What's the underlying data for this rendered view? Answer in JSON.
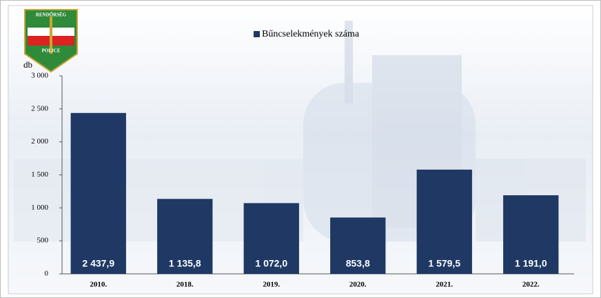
{
  "logo": {
    "top": "RENDŐRSÉG",
    "bottom": "POLICE"
  },
  "chart_data": {
    "type": "bar",
    "y_label": "db",
    "categories": [
      "2010.",
      "2018.",
      "2019.",
      "2020.",
      "2021.",
      "2022."
    ],
    "series": [
      {
        "name": "Bűncselekmények száma",
        "color": "#1f3864",
        "values": [
          2437.9,
          1135.8,
          1072.0,
          853.8,
          1579.5,
          1191.0
        ],
        "value_labels": [
          "2 437,9",
          "1 135,8",
          "1 072,0",
          "853,8",
          "1 579,5",
          "1 191,0"
        ]
      }
    ],
    "ylim": [
      0,
      3000
    ],
    "yticks": [
      0,
      500,
      {
        "value": 1000,
        "label": "1 000"
      },
      {
        "value": 1500,
        "label": "1 500"
      },
      {
        "value": 2000,
        "label": "2 000"
      },
      {
        "value": 2500,
        "label": "2 500"
      },
      {
        "value": 3000,
        "label": "3 000"
      }
    ],
    "grid": false
  }
}
